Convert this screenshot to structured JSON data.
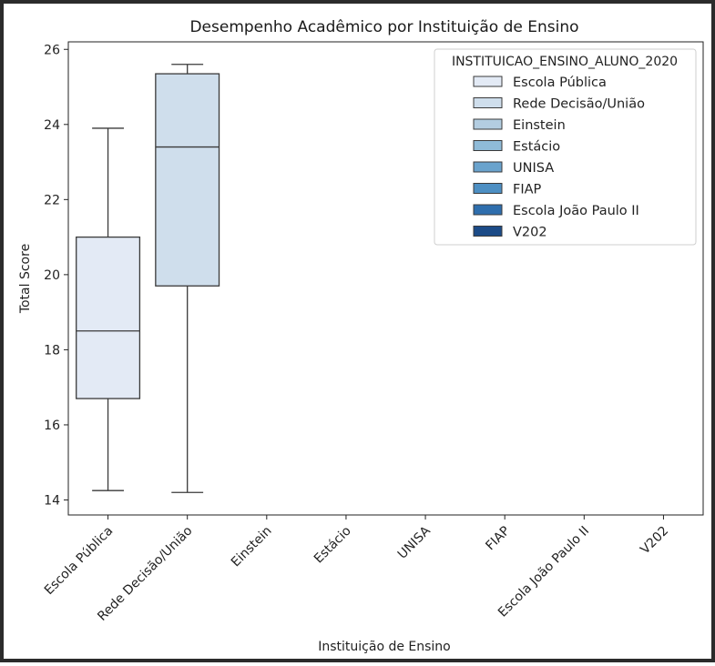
{
  "chart_data": {
    "type": "box",
    "title": "Desempenho Acadêmico por Instituição de Ensino",
    "xlabel": "Instituição de Ensino",
    "ylabel": "Total Score",
    "ylim": [
      13.6,
      26.2
    ],
    "yticks": [
      14,
      16,
      18,
      20,
      22,
      24,
      26
    ],
    "categories": [
      "Escola Pública",
      "Rede Decisão/União",
      "Einstein",
      "Estácio",
      "UNISA",
      "FIAP",
      "Escola João Paulo II",
      "V202"
    ],
    "boxes": [
      {
        "category": "Escola Pública",
        "whisker_low": 14.25,
        "q1": 16.7,
        "median": 18.5,
        "q3": 21.0,
        "whisker_high": 23.9
      },
      {
        "category": "Rede Decisão/União",
        "whisker_low": 14.2,
        "q1": 19.7,
        "median": 23.4,
        "q3": 25.35,
        "whisker_high": 25.6
      }
    ],
    "legend": {
      "title": "INSTITUICAO_ENSINO_ALUNO_2020",
      "placement": "top-right",
      "entries": [
        "Escola Pública",
        "Rede Decisão/União",
        "Einstein",
        "Estácio",
        "UNISA",
        "FIAP",
        "Escola João Paulo II",
        "V202"
      ]
    },
    "colors": [
      "#e3eaf5",
      "#cfdeec",
      "#b3cde1",
      "#8fbbd8",
      "#6aa3cd",
      "#4d8fc3",
      "#2e6ead",
      "#1c4b87"
    ],
    "grid": false
  }
}
